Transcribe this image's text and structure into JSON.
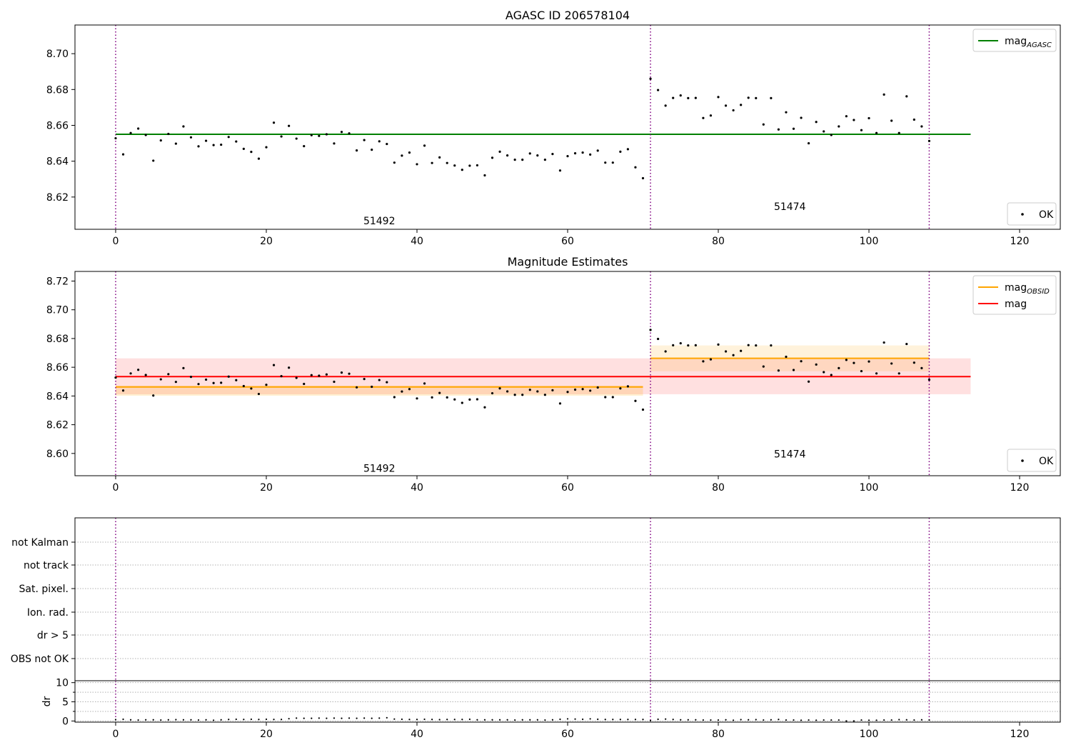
{
  "chart_data": [
    {
      "type": "scatter",
      "title": "AGASC ID 206578104",
      "xlim": [
        -5.4,
        125.4
      ],
      "ylim": [
        8.602,
        8.716
      ],
      "xticks": [
        0,
        20,
        40,
        60,
        80,
        100,
        120
      ],
      "yticks": [
        8.62,
        8.64,
        8.66,
        8.68,
        8.7
      ],
      "obsid_boundaries": [
        0,
        71,
        108
      ],
      "obsid_labels": [
        {
          "text": "51492",
          "x": 35,
          "y": 8.6048
        },
        {
          "text": "51474",
          "x": 89.5,
          "y": 8.6128
        }
      ],
      "legends": [
        {
          "position": "upper-right",
          "entries": [
            {
              "label": "mag",
              "sub": "AGASC",
              "color": "#008000",
              "kind": "line"
            }
          ]
        },
        {
          "position": "lower-right",
          "entries": [
            {
              "label": "OK",
              "color": "#000000",
              "kind": "point"
            }
          ]
        }
      ],
      "lines": [
        {
          "name": "mag_AGASC",
          "y": 8.655,
          "x": [
            0,
            113.5
          ],
          "color": "#008000"
        }
      ],
      "series": [
        {
          "name": "OK",
          "x": [
            0,
            1,
            2,
            3,
            4,
            5,
            6,
            7,
            8,
            9,
            10,
            11,
            12,
            13,
            14,
            15,
            16,
            17,
            18,
            19,
            20,
            21,
            22,
            23,
            24,
            25,
            26,
            27,
            28,
            29,
            30,
            31,
            32,
            33,
            34,
            35,
            36,
            37,
            38,
            39,
            40,
            41,
            42,
            43,
            44,
            45,
            46,
            47,
            48,
            49,
            50,
            51,
            52,
            53,
            54,
            55,
            56,
            57,
            58,
            59,
            60,
            61,
            62,
            63,
            64,
            65,
            66,
            67,
            68,
            69,
            70,
            71,
            72,
            73,
            74,
            75,
            76,
            77,
            78,
            79,
            80,
            81,
            82,
            83,
            84,
            85,
            86,
            87,
            88,
            89,
            90,
            91,
            92,
            93,
            94,
            95,
            96,
            97,
            98,
            99,
            100,
            101,
            102,
            103,
            104,
            105,
            106,
            107,
            108
          ],
          "y": [
            8.6528,
            8.6438,
            8.6557,
            8.6582,
            8.6546,
            8.6403,
            8.6516,
            8.6552,
            8.6498,
            8.6594,
            8.6533,
            8.6483,
            8.6514,
            8.649,
            8.6492,
            8.6535,
            8.651,
            8.6469,
            8.6452,
            8.6414,
            8.6478,
            8.6615,
            8.6538,
            8.6597,
            8.6526,
            8.6484,
            8.6545,
            8.6541,
            8.655,
            8.6499,
            8.6563,
            8.6555,
            8.646,
            8.6518,
            8.6464,
            8.6511,
            8.6496,
            8.6392,
            8.6431,
            8.6448,
            8.6383,
            8.6487,
            8.639,
            8.6421,
            8.639,
            8.6376,
            8.6352,
            8.6375,
            8.6377,
            8.6321,
            8.6419,
            8.6453,
            8.6432,
            8.6408,
            8.6408,
            8.6443,
            8.6432,
            8.6408,
            8.644,
            8.6348,
            8.6428,
            8.6444,
            8.6448,
            8.6437,
            8.6459,
            8.6392,
            8.6392,
            8.6453,
            8.6467,
            8.6366,
            8.6305,
            8.686,
            8.6797,
            8.671,
            8.6753,
            8.6767,
            8.6752,
            8.6753,
            8.6641,
            8.6655,
            8.6758,
            8.671,
            8.6684,
            8.6714,
            8.6754,
            8.6752,
            8.6605,
            8.6752,
            8.6577,
            8.6673,
            8.6581,
            8.6642,
            8.65,
            8.6619,
            8.6566,
            8.6546,
            8.6594,
            8.6651,
            8.663,
            8.6573,
            8.664,
            8.6557,
            8.6772,
            8.6626,
            8.6557,
            8.6762,
            8.6632,
            8.6594,
            8.6513
          ]
        }
      ]
    },
    {
      "type": "scatter",
      "title": "Magnitude Estimates",
      "xlim": [
        -5.4,
        125.4
      ],
      "ylim": [
        8.5845,
        8.7267
      ],
      "xticks": [
        0,
        20,
        40,
        60,
        80,
        100,
        120
      ],
      "yticks": [
        8.6,
        8.62,
        8.64,
        8.66,
        8.68,
        8.7,
        8.72
      ],
      "obsid_boundaries": [
        0,
        71,
        108
      ],
      "obsid_labels": [
        {
          "text": "51492",
          "x": 35,
          "y": 8.5872
        },
        {
          "text": "51474",
          "x": 89.5,
          "y": 8.5972
        }
      ],
      "legends": [
        {
          "position": "upper-right",
          "entries": [
            {
              "label": "mag",
              "sub": "OBSID",
              "color": "#ffa500",
              "kind": "line"
            },
            {
              "label": "mag",
              "sub": "",
              "color": "#ff0000",
              "kind": "line"
            }
          ]
        },
        {
          "position": "lower-right",
          "entries": [
            {
              "label": "OK",
              "color": "#000000",
              "kind": "point"
            }
          ]
        }
      ],
      "bands": [
        {
          "x": [
            0,
            113.5
          ],
          "y": [
            8.6412,
            8.6662
          ],
          "color": "#ff0000",
          "opacity": 0.12
        },
        {
          "x": [
            0,
            70
          ],
          "y": [
            8.6402,
            8.6472
          ],
          "color": "#ffa500",
          "opacity": 0.18
        },
        {
          "x": [
            71,
            108
          ],
          "y": [
            8.6572,
            8.6752
          ],
          "color": "#ffa500",
          "opacity": 0.14
        }
      ],
      "lines": [
        {
          "name": "mag",
          "y": 8.6535,
          "x": [
            0,
            113.5
          ],
          "color": "#ff0000"
        },
        {
          "name": "mag_OBSID 51492",
          "y": 8.6463,
          "x": [
            0,
            70
          ],
          "color": "#ffa500"
        },
        {
          "name": "mag_OBSID 51474",
          "y": 8.6662,
          "x": [
            71,
            108
          ],
          "color": "#ffa500"
        }
      ],
      "series": [
        {
          "name": "OK",
          "x": [
            0,
            1,
            2,
            3,
            4,
            5,
            6,
            7,
            8,
            9,
            10,
            11,
            12,
            13,
            14,
            15,
            16,
            17,
            18,
            19,
            20,
            21,
            22,
            23,
            24,
            25,
            26,
            27,
            28,
            29,
            30,
            31,
            32,
            33,
            34,
            35,
            36,
            37,
            38,
            39,
            40,
            41,
            42,
            43,
            44,
            45,
            46,
            47,
            48,
            49,
            50,
            51,
            52,
            53,
            54,
            55,
            56,
            57,
            58,
            59,
            60,
            61,
            62,
            63,
            64,
            65,
            66,
            67,
            68,
            69,
            70,
            71,
            72,
            73,
            74,
            75,
            76,
            77,
            78,
            79,
            80,
            81,
            82,
            83,
            84,
            85,
            86,
            87,
            88,
            89,
            90,
            91,
            92,
            93,
            94,
            95,
            96,
            97,
            98,
            99,
            100,
            101,
            102,
            103,
            104,
            105,
            106,
            107,
            108
          ],
          "y": [
            8.6528,
            8.6438,
            8.6557,
            8.6582,
            8.6546,
            8.6403,
            8.6516,
            8.6552,
            8.6498,
            8.6594,
            8.6533,
            8.6483,
            8.6514,
            8.649,
            8.6492,
            8.6535,
            8.651,
            8.6469,
            8.6452,
            8.6414,
            8.6478,
            8.6615,
            8.6538,
            8.6597,
            8.6526,
            8.6484,
            8.6545,
            8.6541,
            8.655,
            8.6499,
            8.6563,
            8.6555,
            8.646,
            8.6518,
            8.6464,
            8.6511,
            8.6496,
            8.6392,
            8.6431,
            8.6448,
            8.6383,
            8.6487,
            8.639,
            8.6421,
            8.639,
            8.6376,
            8.6352,
            8.6375,
            8.6377,
            8.6321,
            8.6419,
            8.6453,
            8.6432,
            8.6408,
            8.6408,
            8.6443,
            8.6432,
            8.6408,
            8.644,
            8.6348,
            8.6428,
            8.6444,
            8.6448,
            8.6437,
            8.6459,
            8.6392,
            8.6392,
            8.6453,
            8.6467,
            8.6366,
            8.6305,
            8.686,
            8.6797,
            8.671,
            8.6753,
            8.6767,
            8.6752,
            8.6753,
            8.6641,
            8.6655,
            8.6758,
            8.671,
            8.6684,
            8.6714,
            8.6754,
            8.6752,
            8.6605,
            8.6752,
            8.6577,
            8.6673,
            8.6581,
            8.6642,
            8.65,
            8.6619,
            8.6566,
            8.6546,
            8.6594,
            8.6651,
            8.663,
            8.6573,
            8.664,
            8.6557,
            8.6772,
            8.6626,
            8.6557,
            8.6762,
            8.6632,
            8.6594,
            8.6513
          ]
        }
      ]
    },
    {
      "type": "table",
      "title": "",
      "xlim": [
        -5.4,
        125.4
      ],
      "obsid_boundaries": [
        0,
        71,
        108
      ],
      "categories": [
        "not Kalman",
        "not track",
        "Sat. pixel.",
        "Ion. rad.",
        "dr > 5",
        "OBS not OK"
      ],
      "flags": []
    },
    {
      "type": "scatter",
      "title": "",
      "ylabel": "dr",
      "xlim": [
        -5.4,
        125.4
      ],
      "ylim": [
        -0.3,
        10.5
      ],
      "xticks": [
        0,
        20,
        40,
        60,
        80,
        100,
        120
      ],
      "yticks": [
        0,
        5,
        10
      ],
      "obsid_boundaries": [
        0,
        71,
        108
      ],
      "series": [
        {
          "name": "dr",
          "x": [
            0,
            1,
            2,
            3,
            4,
            5,
            6,
            7,
            8,
            9,
            10,
            11,
            12,
            13,
            14,
            15,
            16,
            17,
            18,
            19,
            20,
            21,
            22,
            23,
            24,
            25,
            26,
            27,
            28,
            29,
            30,
            31,
            32,
            33,
            34,
            35,
            36,
            37,
            38,
            39,
            40,
            41,
            42,
            43,
            44,
            45,
            46,
            47,
            48,
            49,
            50,
            51,
            52,
            53,
            54,
            55,
            56,
            57,
            58,
            59,
            60,
            61,
            62,
            63,
            64,
            65,
            66,
            67,
            68,
            69,
            70,
            71,
            72,
            73,
            74,
            75,
            76,
            77,
            78,
            79,
            80,
            81,
            82,
            83,
            84,
            85,
            86,
            87,
            88,
            89,
            90,
            91,
            92,
            93,
            94,
            95,
            96,
            97,
            98,
            99,
            100,
            101,
            102,
            103,
            104,
            105,
            106,
            107,
            108
          ],
          "y": [
            0.35,
            0.45,
            0.3,
            0.25,
            0.3,
            0.3,
            0.25,
            0.3,
            0.35,
            0.3,
            0.3,
            0.25,
            0.3,
            0.2,
            0.3,
            0.4,
            0.45,
            0.4,
            0.45,
            0.4,
            0.45,
            0.4,
            0.4,
            0.6,
            0.75,
            0.7,
            0.7,
            0.75,
            0.7,
            0.75,
            0.7,
            0.75,
            0.7,
            0.75,
            0.7,
            0.75,
            0.85,
            0.5,
            0.45,
            0.4,
            0.4,
            0.45,
            0.4,
            0.35,
            0.4,
            0.4,
            0.4,
            0.45,
            0.3,
            0.3,
            0.3,
            0.3,
            0.3,
            0.25,
            0.3,
            0.3,
            0.3,
            0.25,
            0.3,
            0.45,
            0.55,
            0.5,
            0.45,
            0.55,
            0.45,
            0.4,
            0.4,
            0.4,
            0.4,
            0.4,
            0.4,
            0.1,
            0.45,
            0.5,
            0.4,
            0.3,
            0.3,
            0.3,
            0.25,
            0.25,
            0.25,
            0.3,
            0.2,
            0.35,
            0.3,
            0.35,
            0.25,
            0.3,
            0.4,
            0.25,
            0.25,
            0.2,
            0.25,
            0.2,
            0.25,
            0.25,
            0.25,
            0.0,
            0.0,
            0.25,
            0.2,
            0.2,
            0.25,
            0.25,
            0.35,
            0.3,
            0.25,
            0.3,
            0.25
          ]
        }
      ]
    }
  ]
}
